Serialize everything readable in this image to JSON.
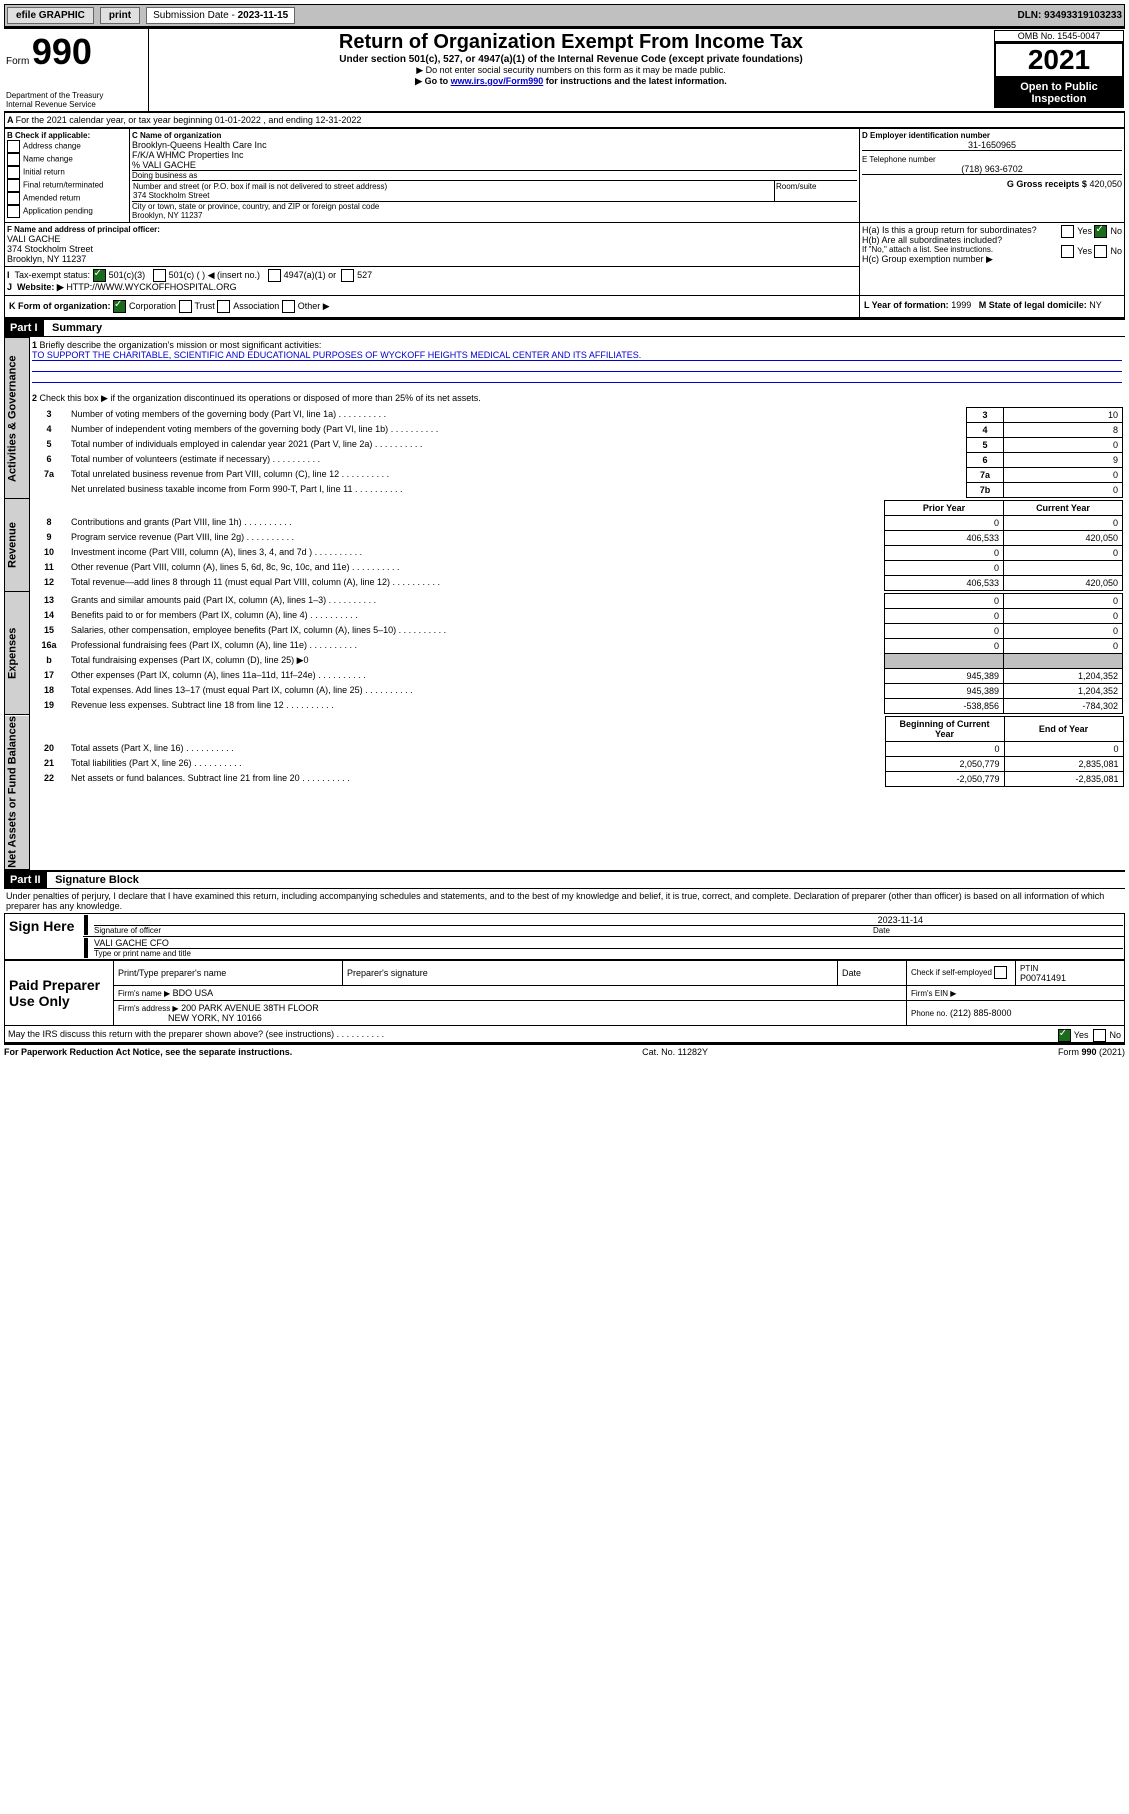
{
  "topbar": {
    "efile": "efile GRAPHIC",
    "print": "print",
    "sub_label": "Submission Date - ",
    "sub_date": "2023-11-15",
    "dln": "DLN: 93493319103233"
  },
  "header": {
    "form_prefix": "Form",
    "form_no": "990",
    "title": "Return of Organization Exempt From Income Tax",
    "subtitle": "Under section 501(c), 527, or 4947(a)(1) of the Internal Revenue Code (except private foundations)",
    "note1": "▶ Do not enter social security numbers on this form as it may be made public.",
    "note2_pre": "▶ Go to ",
    "note2_link": "www.irs.gov/Form990",
    "note2_post": " for instructions and the latest information.",
    "dept": "Department of the Treasury\nInternal Revenue Service",
    "omb": "OMB No. 1545-0047",
    "year": "2021",
    "inspect": "Open to Public Inspection"
  },
  "sectionA": {
    "line": "For the 2021 calendar year, or tax year beginning 01-01-2022   , and ending 12-31-2022",
    "check_label": "B Check if applicable:",
    "checks": [
      "Address change",
      "Name change",
      "Initial return",
      "Final return/terminated",
      "Amended return",
      "Application pending"
    ],
    "c_label": "C Name of organization",
    "c_lines": [
      "Brooklyn-Queens Health Care Inc",
      "F/K/A WHMC Properties Inc",
      "% VALI GACHE"
    ],
    "dba": "Doing business as",
    "addr_label": "Number and street (or P.O. box if mail is not delivered to street address)",
    "addr": "374 Stockholm Street",
    "room": "Room/suite",
    "city_label": "City or town, state or province, country, and ZIP or foreign postal code",
    "city": "Brooklyn, NY  11237",
    "d_label": "D Employer identification number",
    "d_val": "31-1650965",
    "e_label": "E Telephone number",
    "e_val": "(718) 963-6702",
    "g_label": "G Gross receipts $",
    "g_val": "420,050",
    "f_label": "F  Name and address of principal officer:",
    "f_name": "VALI GACHE",
    "f_addr1": "374 Stockholm Street",
    "f_addr2": "Brooklyn, NY  11237",
    "ha": "H(a)  Is this a group return for subordinates?",
    "hb": "H(b)  Are all subordinates included?",
    "hb_note": "If \"No,\" attach a list. See instructions.",
    "hc": "H(c)  Group exemption number ▶",
    "yes": "Yes",
    "no": "No",
    "i_label": "Tax-exempt status:",
    "i_501c3": "501(c)(3)",
    "i_501c": "501(c) (   ) ◀ (insert no.)",
    "i_4947": "4947(a)(1) or",
    "i_527": "527",
    "j_label": "Website: ▶",
    "j_val": "HTTP://WWW.WYCKOFFHOSPITAL.ORG",
    "k_label": "K Form of organization:",
    "k_opts": [
      "Corporation",
      "Trust",
      "Association",
      "Other ▶"
    ],
    "l_label": "L Year of formation:",
    "l_val": "1999",
    "m_label": "M State of legal domicile:",
    "m_val": "NY"
  },
  "part1": {
    "hdr": "Part I",
    "title": "Summary",
    "q1": "Briefly describe the organization's mission or most significant activities:",
    "q1_ans": "TO SUPPORT THE CHARITABLE, SCIENTIFIC AND EDUCATIONAL PURPOSES OF WYCKOFF HEIGHTS MEDICAL CENTER AND ITS AFFILIATES.",
    "q2": "Check this box ▶  if the organization discontinued its operations or disposed of more than 25% of its net assets.",
    "gov_rows": [
      {
        "n": "3",
        "t": "Number of voting members of the governing body (Part VI, line 1a)",
        "box": "3",
        "v": "10"
      },
      {
        "n": "4",
        "t": "Number of independent voting members of the governing body (Part VI, line 1b)",
        "box": "4",
        "v": "8"
      },
      {
        "n": "5",
        "t": "Total number of individuals employed in calendar year 2021 (Part V, line 2a)",
        "box": "5",
        "v": "0"
      },
      {
        "n": "6",
        "t": "Total number of volunteers (estimate if necessary)",
        "box": "6",
        "v": "9"
      },
      {
        "n": "7a",
        "t": "Total unrelated business revenue from Part VIII, column (C), line 12",
        "box": "7a",
        "v": "0"
      },
      {
        "n": "",
        "t": "Net unrelated business taxable income from Form 990-T, Part I, line 11",
        "box": "7b",
        "v": "0"
      }
    ],
    "col_prior": "Prior Year",
    "col_current": "Current Year",
    "col_begin": "Beginning of Current Year",
    "col_end": "End of Year",
    "rev_rows": [
      {
        "n": "8",
        "t": "Contributions and grants (Part VIII, line 1h)",
        "p": "0",
        "c": "0"
      },
      {
        "n": "9",
        "t": "Program service revenue (Part VIII, line 2g)",
        "p": "406,533",
        "c": "420,050"
      },
      {
        "n": "10",
        "t": "Investment income (Part VIII, column (A), lines 3, 4, and 7d )",
        "p": "0",
        "c": "0"
      },
      {
        "n": "11",
        "t": "Other revenue (Part VIII, column (A), lines 5, 6d, 8c, 9c, 10c, and 11e)",
        "p": "0",
        "c": ""
      },
      {
        "n": "12",
        "t": "Total revenue—add lines 8 through 11 (must equal Part VIII, column (A), line 12)",
        "p": "406,533",
        "c": "420,050"
      }
    ],
    "exp_rows": [
      {
        "n": "13",
        "t": "Grants and similar amounts paid (Part IX, column (A), lines 1–3)",
        "p": "0",
        "c": "0"
      },
      {
        "n": "14",
        "t": "Benefits paid to or for members (Part IX, column (A), line 4)",
        "p": "0",
        "c": "0"
      },
      {
        "n": "15",
        "t": "Salaries, other compensation, employee benefits (Part IX, column (A), lines 5–10)",
        "p": "0",
        "c": "0"
      },
      {
        "n": "16a",
        "t": "Professional fundraising fees (Part IX, column (A), line 11e)",
        "p": "0",
        "c": "0"
      },
      {
        "n": "b",
        "t": "Total fundraising expenses (Part IX, column (D), line 25) ▶0",
        "p": "",
        "c": "",
        "grey": true
      },
      {
        "n": "17",
        "t": "Other expenses (Part IX, column (A), lines 11a–11d, 11f–24e)",
        "p": "945,389",
        "c": "1,204,352"
      },
      {
        "n": "18",
        "t": "Total expenses. Add lines 13–17 (must equal Part IX, column (A), line 25)",
        "p": "945,389",
        "c": "1,204,352"
      },
      {
        "n": "19",
        "t": "Revenue less expenses. Subtract line 18 from line 12",
        "p": "-538,856",
        "c": "-784,302"
      }
    ],
    "net_rows": [
      {
        "n": "20",
        "t": "Total assets (Part X, line 16)",
        "p": "0",
        "c": "0"
      },
      {
        "n": "21",
        "t": "Total liabilities (Part X, line 26)",
        "p": "2,050,779",
        "c": "2,835,081"
      },
      {
        "n": "22",
        "t": "Net assets or fund balances. Subtract line 21 from line 20",
        "p": "-2,050,779",
        "c": "-2,835,081"
      }
    ],
    "vlabels": {
      "gov": "Activities & Governance",
      "rev": "Revenue",
      "exp": "Expenses",
      "net": "Net Assets or Fund Balances"
    }
  },
  "part2": {
    "hdr": "Part II",
    "title": "Signature Block",
    "decl": "Under penalties of perjury, I declare that I have examined this return, including accompanying schedules and statements, and to the best of my knowledge and belief, it is true, correct, and complete. Declaration of preparer (other than officer) is based on all information of which preparer has any knowledge.",
    "sign_here": "Sign Here",
    "sig_officer": "Signature of officer",
    "sig_date_label": "Date",
    "sig_date": "2023-11-14",
    "name_title": "VALI GACHE  CFO",
    "name_title_label": "Type or print name and title",
    "paid": "Paid Preparer Use Only",
    "pp_name": "Print/Type preparer's name",
    "pp_sig": "Preparer's signature",
    "pp_date": "Date",
    "pp_check": "Check        if self-employed",
    "ptin_label": "PTIN",
    "ptin": "P00741491",
    "firm_name_label": "Firm's name     ▶",
    "firm_name": "BDO USA",
    "firm_ein": "Firm's EIN ▶",
    "firm_addr_label": "Firm's address ▶",
    "firm_addr1": "200 PARK AVENUE 38TH FLOOR",
    "firm_addr2": "NEW YORK, NY 10166",
    "phone_label": "Phone no.",
    "phone": "(212) 885-8000",
    "discuss": "May the IRS discuss this return with the preparer shown above? (see instructions)"
  },
  "footer": {
    "left": "For Paperwork Reduction Act Notice, see the separate instructions.",
    "mid": "Cat. No. 11282Y",
    "right": "Form 990 (2021)"
  }
}
